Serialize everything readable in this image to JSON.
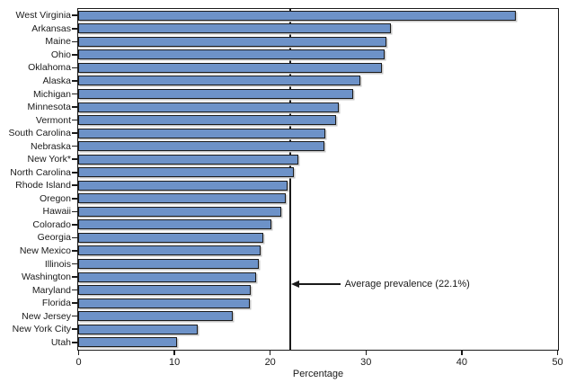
{
  "chart_data": {
    "type": "bar",
    "orientation": "horizontal",
    "title": "",
    "xlabel": "Percentage",
    "ylabel": "",
    "xlim": [
      0,
      50
    ],
    "x_ticks": [
      0,
      10,
      20,
      30,
      40,
      50
    ],
    "grid": false,
    "legend": false,
    "categories": [
      "West Virginia",
      "Arkansas",
      "Maine",
      "Ohio",
      "Oklahoma",
      "Alaska",
      "Michigan",
      "Minnesota",
      "Vermont",
      "South Carolina",
      "Nebraska",
      "New York*",
      "North Carolina",
      "Rhode Island",
      "Oregon",
      "Hawaii",
      "Colorado",
      "Georgia",
      "New Mexico",
      "Illinois",
      "Washington",
      "Maryland",
      "Florida",
      "New Jersey",
      "New York City",
      "Utah"
    ],
    "values": [
      45.7,
      32.6,
      32.2,
      32.0,
      31.7,
      29.5,
      28.7,
      27.2,
      26.9,
      25.8,
      25.7,
      23.0,
      22.5,
      21.9,
      21.7,
      21.2,
      20.2,
      19.3,
      19.0,
      18.9,
      18.6,
      18.0,
      17.9,
      16.1,
      12.5,
      10.3
    ],
    "avg_line": {
      "value": 22.1,
      "label": "Average prevalence (22.1%)"
    },
    "colors": {
      "bar_fill": "#6d92c8",
      "bar_border": "#1b1b1b",
      "bar_shadow": "#c6c6c6",
      "axis": "#1a1a1a",
      "text": "#1a1a1a",
      "background": "#ffffff"
    }
  }
}
